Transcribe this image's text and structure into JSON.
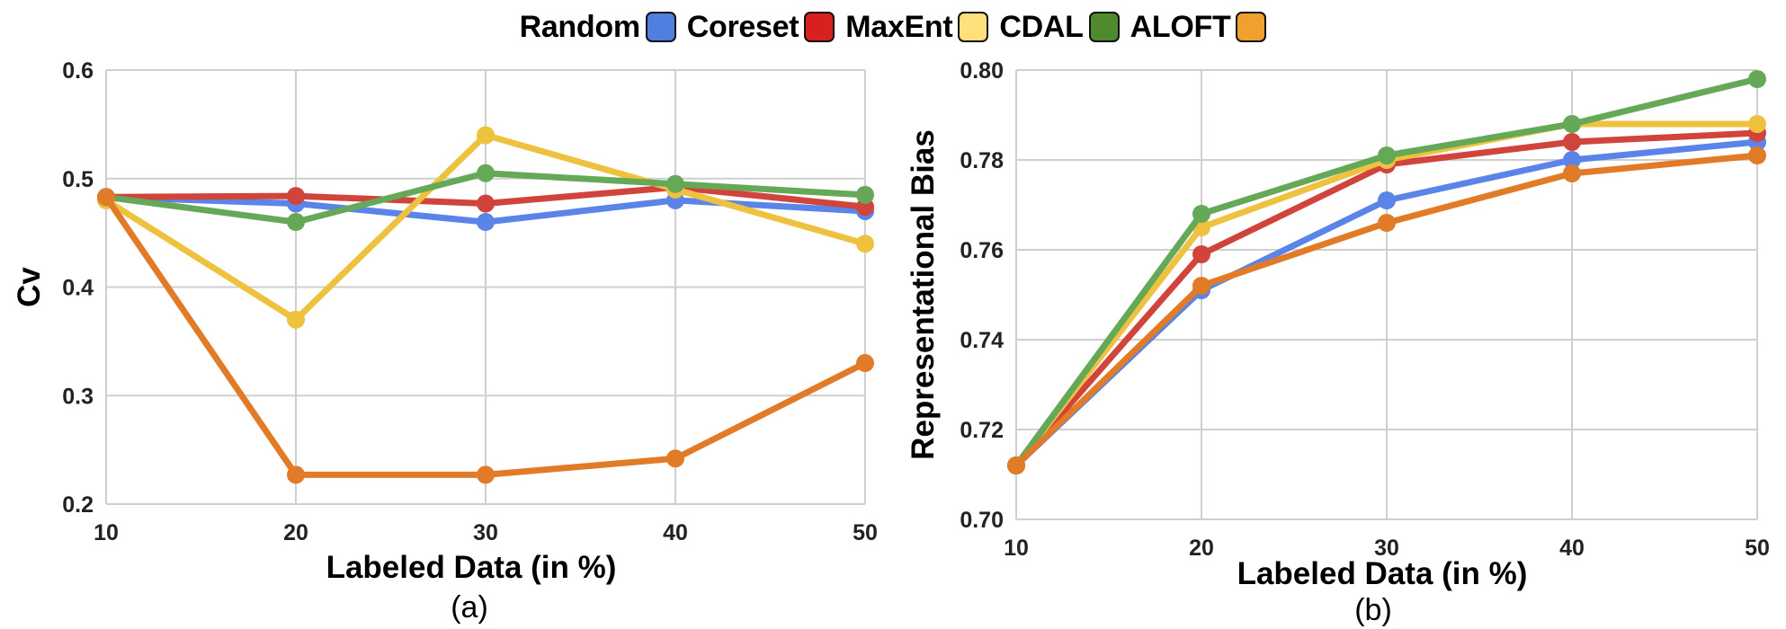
{
  "legend": [
    {
      "label": "Random",
      "color": "#4F7FE0"
    },
    {
      "label": "Coreset",
      "color": "#D92020"
    },
    {
      "label": "MaxEnt",
      "color": "#FFE07A"
    },
    {
      "label": "CDAL",
      "color": "#4F8A2E"
    },
    {
      "label": "ALOFT",
      "color": "#F0A030"
    }
  ],
  "chart_data": [
    {
      "type": "line",
      "caption": "(a)",
      "xlabel": "Labeled Data (in %)",
      "ylabel": "Cv",
      "x": [
        10,
        20,
        30,
        40,
        50
      ],
      "xlim": [
        10,
        50
      ],
      "ylim": [
        0.2,
        0.6
      ],
      "xticks": [
        "10",
        "20",
        "30",
        "40",
        "50"
      ],
      "yticks": [
        "0.2",
        "0.3",
        "0.4",
        "0.5",
        "0.6"
      ],
      "grid": true,
      "series": [
        {
          "color": "#5B84E8",
          "values": [
            0.483,
            0.477,
            0.46,
            0.48,
            0.47
          ]
        },
        {
          "color": "#D0443C",
          "values": [
            0.483,
            0.484,
            0.477,
            0.492,
            0.474
          ]
        },
        {
          "color": "#EEC23F",
          "values": [
            0.48,
            0.37,
            0.54,
            0.49,
            0.44
          ]
        },
        {
          "color": "#64A858",
          "values": [
            0.483,
            0.46,
            0.505,
            0.495,
            0.485
          ]
        },
        {
          "color": "#E27B28",
          "values": [
            0.483,
            0.227,
            0.227,
            0.242,
            0.33
          ]
        }
      ]
    },
    {
      "type": "line",
      "caption": "(b)",
      "xlabel": "Labeled Data (in %)",
      "ylabel": "Representational Bias",
      "x": [
        10,
        20,
        30,
        40,
        50
      ],
      "xlim": [
        10,
        50
      ],
      "ylim": [
        0.7,
        0.8
      ],
      "xticks": [
        "10",
        "20",
        "30",
        "40",
        "50"
      ],
      "yticks": [
        "0.70",
        "0.72",
        "0.74",
        "0.76",
        "0.78",
        "0.80"
      ],
      "grid": true,
      "series": [
        {
          "color": "#5B84E8",
          "values": [
            0.712,
            0.751,
            0.771,
            0.78,
            0.784
          ]
        },
        {
          "color": "#D0443C",
          "values": [
            0.712,
            0.759,
            0.779,
            0.784,
            0.786
          ]
        },
        {
          "color": "#EEC23F",
          "values": [
            0.712,
            0.765,
            0.78,
            0.788,
            0.788
          ]
        },
        {
          "color": "#64A858",
          "values": [
            0.712,
            0.768,
            0.781,
            0.788,
            0.798
          ]
        },
        {
          "color": "#E27B28",
          "values": [
            0.712,
            0.752,
            0.766,
            0.777,
            0.781
          ]
        }
      ]
    }
  ]
}
